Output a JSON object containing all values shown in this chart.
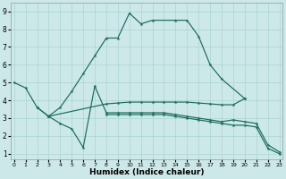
{
  "xlabel": "Humidex (Indice chaleur)",
  "bg_color": "#cce8e8",
  "grid_color": "#aad4d4",
  "line_color": "#1a6b5a",
  "xlim": [
    -0.3,
    23.3
  ],
  "ylim": [
    0.7,
    9.5
  ],
  "xticks": [
    0,
    1,
    2,
    3,
    4,
    5,
    6,
    7,
    8,
    9,
    10,
    11,
    12,
    13,
    14,
    15,
    16,
    17,
    18,
    19,
    20,
    21,
    22,
    23
  ],
  "yticks": [
    1,
    2,
    3,
    4,
    5,
    6,
    7,
    8,
    9
  ],
  "lines": [
    {
      "comment": "main ascending curve: 0->1->2->...->9->10->11->12->skip13->14->15->16->17->18->20",
      "x": [
        0,
        1,
        2,
        3,
        4,
        5,
        6,
        7,
        8,
        9,
        10,
        11,
        12,
        14,
        15,
        16,
        17,
        18,
        20
      ],
      "y": [
        5.0,
        4.7,
        3.6,
        3.1,
        3.6,
        4.5,
        5.5,
        6.5,
        7.5,
        7.5,
        8.9,
        8.3,
        8.5,
        8.5,
        8.5,
        7.6,
        6.0,
        5.2,
        4.1
      ]
    },
    {
      "x": [
        2,
        3,
        8,
        9,
        10,
        11,
        12,
        13,
        14,
        15,
        16,
        17,
        18,
        19,
        20
      ],
      "y": [
        3.6,
        3.1,
        3.8,
        3.85,
        3.9,
        3.9,
        3.9,
        3.9,
        3.9,
        3.9,
        3.85,
        3.8,
        3.75,
        3.75,
        4.1
      ]
    },
    {
      "x": [
        3,
        4,
        5,
        6,
        7,
        8,
        9,
        10,
        11,
        12,
        13,
        14,
        15,
        16,
        17,
        18,
        19,
        20,
        21,
        22,
        23
      ],
      "y": [
        3.1,
        2.7,
        2.4,
        1.35,
        4.8,
        3.3,
        3.3,
        3.3,
        3.3,
        3.3,
        3.3,
        3.2,
        3.1,
        3.0,
        2.9,
        2.8,
        2.9,
        2.8,
        2.7,
        1.5,
        1.1
      ]
    },
    {
      "x": [
        8,
        9,
        10,
        11,
        12,
        13,
        14,
        15,
        16,
        17,
        18,
        19,
        20,
        21,
        22,
        23
      ],
      "y": [
        3.2,
        3.2,
        3.2,
        3.2,
        3.2,
        3.2,
        3.1,
        3.0,
        2.9,
        2.8,
        2.7,
        2.6,
        2.6,
        2.5,
        1.3,
        1.0
      ]
    }
  ]
}
